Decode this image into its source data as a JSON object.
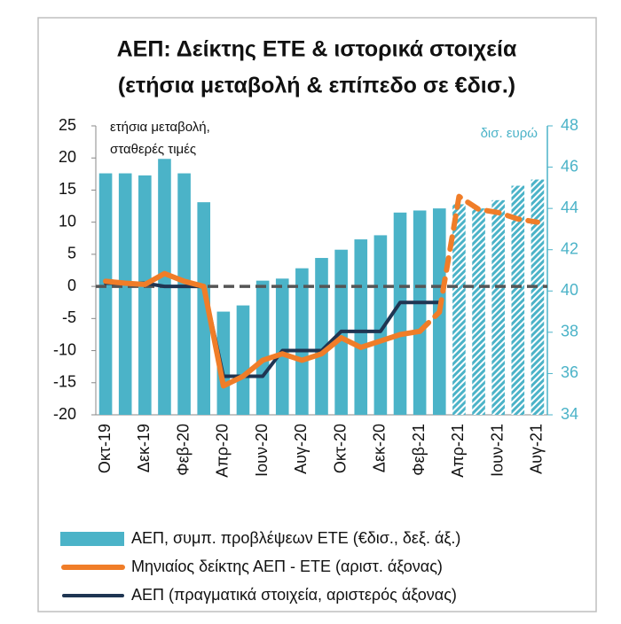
{
  "chart_data": {
    "type": "bar_line",
    "title": [
      "ΑΕΠ: Δείκτης ΕΤΕ & ιστορικά στοιχεία",
      "(ετήσια μεταβολή & επίπεδο σε €δισ.)"
    ],
    "y_axis_label": [
      "ετήσια μεταβολή,",
      "σταθερές τιμές"
    ],
    "y2_axis_label": "δισ. ευρώ",
    "categories": [
      "Οκτ-19",
      null,
      "Δεκ-19",
      null,
      "Φεβ-20",
      null,
      "Απρ-20",
      null,
      "Ιουν-20",
      null,
      "Αυγ-20",
      null,
      "Οκτ-20",
      null,
      "Δεκ-20",
      null,
      "Φεβ-21",
      null,
      "Απρ-21",
      null,
      "Ιουν-21",
      null,
      "Αυγ-21"
    ],
    "ylim": [
      -20,
      25
    ],
    "yticks": [
      -20,
      -15,
      -10,
      -5,
      0,
      5,
      10,
      15,
      20,
      25
    ],
    "y2lim": [
      34,
      48
    ],
    "y2ticks": [
      34,
      36,
      38,
      40,
      42,
      44,
      46,
      48
    ],
    "zero_line": true,
    "series": [
      {
        "name": "ΑΕΠ, συμπ. προβλέψεων ΕΤΕ  (€δισ., δεξ. άξ.)",
        "type": "bar",
        "axis": "y2",
        "color": "#4bb3c8",
        "hatched_from": 18,
        "values": [
          45.7,
          45.7,
          45.6,
          46.4,
          45.7,
          44.3,
          39.0,
          39.3,
          40.5,
          40.6,
          41.1,
          41.6,
          42.0,
          42.5,
          42.7,
          43.8,
          43.9,
          44.0,
          44.2,
          44.0,
          44.4,
          45.1,
          45.4
        ]
      },
      {
        "name": "Μηνιαίος δείκτης ΑΕΠ - ΕΤΕ (αριστ. άξονας)",
        "type": "line",
        "axis": "y",
        "color": "#f07d28",
        "dashed_from": 17,
        "values": [
          0.8,
          0.5,
          0.3,
          2,
          0.8,
          0,
          -15.5,
          -14,
          -11.5,
          -10.5,
          -11.5,
          -10.5,
          -8,
          -9.5,
          -8.5,
          -7.5,
          -7,
          -4,
          14,
          12,
          11.5,
          10.5,
          10
        ]
      },
      {
        "name": "ΑΕΠ (πραγματικά στοιχεία, αριστερός άξονας)",
        "type": "line",
        "axis": "y",
        "color": "#1f3552",
        "values": [
          0.5,
          0.5,
          0.5,
          0,
          0,
          0,
          -14,
          -14,
          -14,
          -10,
          -10,
          -10,
          -7,
          -7,
          -7,
          -2.5,
          -2.5,
          -2.5,
          null,
          null,
          null,
          null,
          null
        ]
      }
    ]
  }
}
